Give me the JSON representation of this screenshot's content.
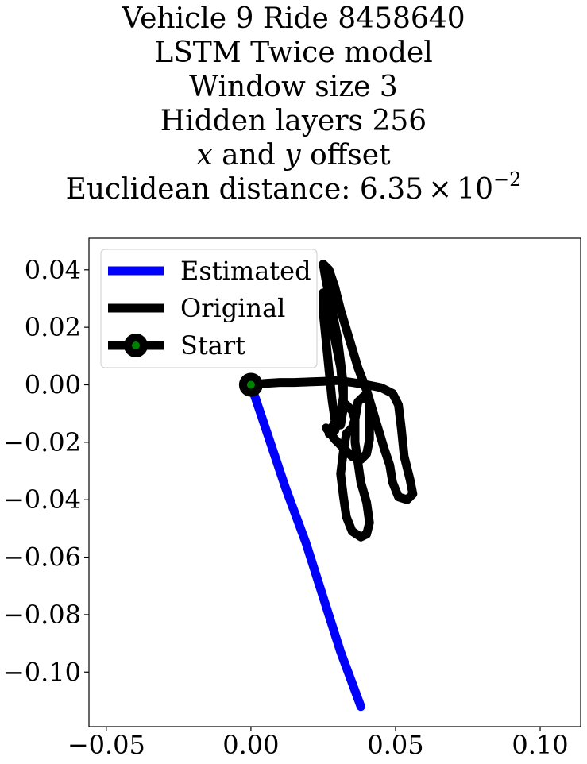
{
  "chart_data": {
    "type": "line",
    "title_lines": [
      "Vehicle 9 Ride 8458640",
      "LSTM Twice model",
      "Window size 3",
      "Hidden layers 256",
      "x and y offset",
      "Euclidean distance: 6.35 × 10^−2"
    ],
    "title_parts": {
      "offset_x": "x",
      "offset_and": " and ",
      "offset_y": "y",
      "offset_rest": " offset",
      "dist_label": "Euclidean distance: 6.35",
      "dist_times": "×",
      "dist_base": "10",
      "dist_exp": "−2"
    },
    "xlim": [
      -0.056,
      0.114
    ],
    "ylim": [
      -0.119,
      0.051
    ],
    "xticks": [
      -0.05,
      0.0,
      0.05,
      0.1
    ],
    "xtick_labels": [
      "−0.05",
      "0.00",
      "0.05",
      "0.10"
    ],
    "yticks": [
      0.04,
      0.02,
      0.0,
      -0.02,
      -0.04,
      -0.06,
      -0.08,
      -0.1
    ],
    "ytick_labels": [
      "0.04",
      "0.02",
      "0.00",
      "−0.02",
      "−0.04",
      "−0.06",
      "−0.08",
      "−0.10"
    ],
    "grid": false,
    "legend_position": "top-left",
    "series": [
      {
        "name": "Estimated",
        "color": "#0000ff",
        "points": [
          [
            0.0,
            0.0
          ],
          [
            0.006,
            -0.018
          ],
          [
            0.012,
            -0.036
          ],
          [
            0.019,
            -0.055
          ],
          [
            0.025,
            -0.074
          ],
          [
            0.031,
            -0.093
          ],
          [
            0.038,
            -0.112
          ]
        ]
      },
      {
        "name": "Original",
        "color": "#000000",
        "points": [
          [
            0.0,
            0.0
          ],
          [
            0.005,
            0.0005
          ],
          [
            0.01,
            0.0008
          ],
          [
            0.015,
            0.0008
          ],
          [
            0.02,
            0.001
          ],
          [
            0.025,
            0.0012
          ],
          [
            0.03,
            0.0015
          ],
          [
            0.035,
            0.0008
          ],
          [
            0.04,
            0.0
          ],
          [
            0.045,
            -0.001
          ],
          [
            0.049,
            -0.003
          ],
          [
            0.051,
            -0.007
          ],
          [
            0.052,
            -0.015
          ],
          [
            0.053,
            -0.025
          ],
          [
            0.055,
            -0.033
          ],
          [
            0.056,
            -0.038
          ],
          [
            0.054,
            -0.04
          ],
          [
            0.051,
            -0.039
          ],
          [
            0.049,
            -0.034
          ],
          [
            0.048,
            -0.028
          ],
          [
            0.046,
            -0.022
          ],
          [
            0.043,
            -0.012
          ],
          [
            0.04,
            -0.002
          ],
          [
            0.037,
            0.006
          ],
          [
            0.034,
            0.016
          ],
          [
            0.031,
            0.026
          ],
          [
            0.029,
            0.034
          ],
          [
            0.027,
            0.04
          ],
          [
            0.025,
            0.042
          ],
          [
            0.026,
            0.036
          ],
          [
            0.028,
            0.026
          ],
          [
            0.03,
            0.016
          ],
          [
            0.031,
            0.008
          ],
          [
            0.032,
            0.0
          ],
          [
            0.032,
            -0.008
          ],
          [
            0.031,
            -0.014
          ],
          [
            0.029,
            -0.012
          ],
          [
            0.028,
            -0.005
          ],
          [
            0.027,
            0.005
          ],
          [
            0.026,
            0.015
          ],
          [
            0.025,
            0.025
          ],
          [
            0.025,
            0.032
          ],
          [
            0.027,
            0.026
          ],
          [
            0.029,
            0.016
          ],
          [
            0.031,
            0.006
          ],
          [
            0.032,
            -0.004
          ],
          [
            0.031,
            -0.01
          ],
          [
            0.029,
            -0.016
          ],
          [
            0.027,
            -0.017
          ],
          [
            0.029,
            -0.013
          ],
          [
            0.031,
            -0.009
          ],
          [
            0.033,
            -0.007
          ],
          [
            0.035,
            -0.009
          ],
          [
            0.036,
            -0.012
          ],
          [
            0.035,
            -0.015
          ],
          [
            0.033,
            -0.017
          ],
          [
            0.032,
            -0.023
          ],
          [
            0.031,
            -0.031
          ],
          [
            0.032,
            -0.039
          ],
          [
            0.033,
            -0.046
          ],
          [
            0.035,
            -0.051
          ],
          [
            0.038,
            -0.053
          ],
          [
            0.04,
            -0.052
          ],
          [
            0.041,
            -0.048
          ],
          [
            0.04,
            -0.041
          ],
          [
            0.038,
            -0.034
          ],
          [
            0.037,
            -0.027
          ],
          [
            0.036,
            -0.02
          ],
          [
            0.036,
            -0.012
          ],
          [
            0.037,
            -0.006
          ],
          [
            0.039,
            -0.004
          ],
          [
            0.041,
            -0.006
          ],
          [
            0.041,
            -0.012
          ],
          [
            0.041,
            -0.019
          ],
          [
            0.04,
            -0.024
          ],
          [
            0.038,
            -0.026
          ],
          [
            0.035,
            -0.025
          ],
          [
            0.032,
            -0.022
          ],
          [
            0.029,
            -0.019
          ],
          [
            0.026,
            -0.015
          ]
        ]
      }
    ],
    "start": {
      "name": "Start",
      "point": [
        0.0,
        0.0
      ],
      "marker_color": "#008000",
      "edge_color": "#000000"
    },
    "legend": [
      {
        "name": "Estimated",
        "color": "#0000ff",
        "marker": false
      },
      {
        "name": "Original",
        "color": "#000000",
        "marker": false
      },
      {
        "name": "Start",
        "color": "#000000",
        "marker": true,
        "marker_color": "#008000"
      }
    ]
  }
}
